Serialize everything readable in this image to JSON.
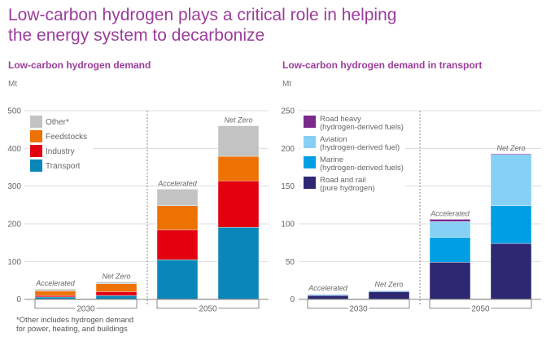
{
  "title": "Low-carbon hydrogen plays a critical role in helping the energy system to decarbonize",
  "title_lines": [
    "Low-carbon hydrogen plays a critical role in helping",
    "the energy system to decarbonize"
  ],
  "footnote_lines": [
    "*Other includes hydrogen demand",
    "for power, heating, and buildings"
  ],
  "colors": {
    "title": "#9b3d9a"
  },
  "chart_data": [
    {
      "type": "bar",
      "stacked": true,
      "title": "Low-carbon hydrogen demand",
      "ylabel": "Mt",
      "ylim": [
        0,
        500
      ],
      "yticks": [
        "0",
        "100",
        "200",
        "300",
        "400",
        "500"
      ],
      "grid": true,
      "legend_position": "top-left",
      "groups": [
        "2030",
        "2050"
      ],
      "categories": [
        "Accelerated",
        "Net Zero",
        "Accelerated",
        "Net Zero"
      ],
      "series": [
        {
          "name": "Transport",
          "color": "#0a87b8",
          "values": [
            6,
            10,
            105,
            191
          ]
        },
        {
          "name": "Industry",
          "color": "#e3000f",
          "values": [
            4,
            10,
            79,
            123
          ]
        },
        {
          "name": "Feedstocks",
          "color": "#ee7203",
          "values": [
            12,
            21,
            64,
            65
          ]
        },
        {
          "name": "Other*",
          "color": "#c3c3c3",
          "values": [
            5,
            5,
            44,
            81
          ]
        }
      ]
    },
    {
      "type": "bar",
      "stacked": true,
      "title": "Low-carbon hydrogen demand in transport",
      "ylabel": "Mt",
      "ylim": [
        0,
        250
      ],
      "yticks": [
        "0",
        "50",
        "100",
        "150",
        "200",
        "250"
      ],
      "grid": true,
      "legend_position": "top-left",
      "groups": [
        "2030",
        "2050"
      ],
      "categories": [
        "Accelerated",
        "Net Zero",
        "Accelerated",
        "Net Zero"
      ],
      "series": [
        {
          "name": "Road and rail (pure hydrogen)",
          "legend_lines": [
            "Road and rail",
            "(pure hydrogen)"
          ],
          "color": "#2e2873",
          "values": [
            5,
            10,
            49,
            74
          ]
        },
        {
          "name": "Marine (hydrogen-derived fuels)",
          "legend_lines": [
            "Marine",
            "(hydrogen-derived fuels)"
          ],
          "color": "#009fe3",
          "values": [
            1,
            1,
            33,
            50
          ]
        },
        {
          "name": "Aviation (hydrogen-derived fuel)",
          "legend_lines": [
            "Aviation",
            "(hydrogen-derived fuel)"
          ],
          "color": "#87d0f5",
          "values": [
            0.5,
            0.5,
            21,
            68
          ]
        },
        {
          "name": "Road heavy (hydrogen-derived fuels)",
          "legend_lines": [
            "Road heavy",
            "(hydrogen-derived fuels)"
          ],
          "color": "#7b2a8c",
          "values": [
            0.5,
            0.5,
            3,
            1
          ]
        }
      ]
    }
  ]
}
